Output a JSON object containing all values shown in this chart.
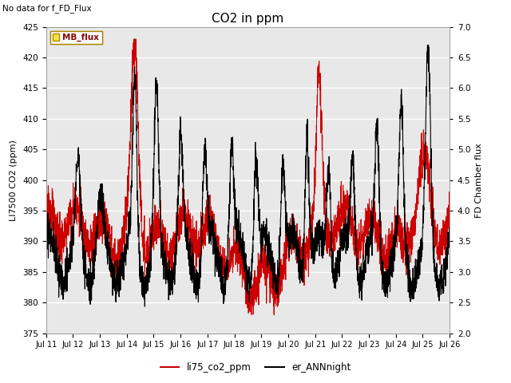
{
  "title": "CO2 in ppm",
  "top_left_text": "No data for f_FD_Flux",
  "ylabel_left": "LI7500 CO2 (ppm)",
  "ylabel_right": "FD Chamber flux",
  "ylim_left": [
    375,
    425
  ],
  "ylim_right": [
    2.0,
    7.0
  ],
  "yticks_left": [
    375,
    380,
    385,
    390,
    395,
    400,
    405,
    410,
    415,
    420,
    425
  ],
  "yticks_right": [
    2.0,
    2.5,
    3.0,
    3.5,
    4.0,
    4.5,
    5.0,
    5.5,
    6.0,
    6.5,
    7.0
  ],
  "xticklabels": [
    "Jul 11",
    "Jul 12",
    "Jul 13",
    "Jul 14",
    "Jul 15",
    "Jul 16",
    "Jul 17",
    "Jul 18",
    "Jul 19",
    "Jul 20",
    "Jul 21",
    "Jul 22",
    "Jul 23",
    "Jul 24",
    "Jul 25",
    "Jul 26"
  ],
  "legend_label_red": "li75_co2_ppm",
  "legend_label_black": "er_ANNnight",
  "legend_box_label": "MB_flux",
  "bg_color": "#e8e8e8",
  "line_color_red": "#cc0000",
  "line_color_black": "#000000",
  "grid_color": "#ffffff",
  "title_fontsize": 11,
  "axis_fontsize": 8,
  "tick_fontsize": 7.5
}
